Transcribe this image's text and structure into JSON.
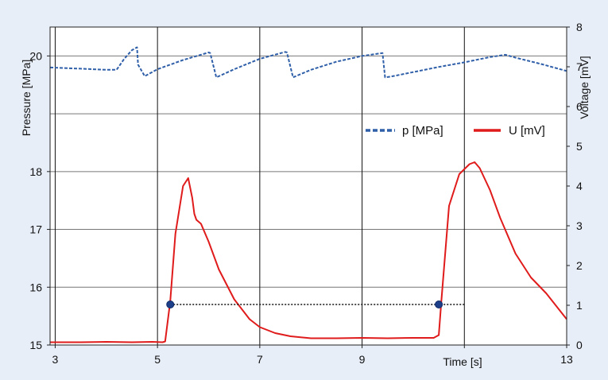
{
  "chart_data": {
    "type": "line",
    "title": "",
    "xlabel": "Time [s]",
    "ylabel_left": "Pressure [MPa]",
    "ylabel_right": "Voltage [mV]",
    "xlim": [
      2.9,
      13.0
    ],
    "ylim_left": [
      15.0,
      20.5
    ],
    "ylim_right": [
      0,
      8
    ],
    "x_ticks": [
      3,
      5,
      7,
      9,
      11,
      13
    ],
    "x_tick_labels": [
      "3",
      "5",
      "7",
      "9",
      "",
      "13"
    ],
    "y_left_ticks": [
      15,
      16,
      17,
      18,
      20
    ],
    "y_left_tick_labels": [
      "15",
      "16",
      "17",
      "18",
      "20"
    ],
    "y_right_ticks": [
      0,
      1,
      2,
      3,
      4,
      5,
      6,
      7,
      8
    ],
    "y_right_tick_labels": [
      "0",
      "1",
      "2",
      "3",
      "4",
      "5",
      "6",
      "7",
      "8"
    ],
    "grid": true,
    "legend_position": "upper-right",
    "colors": {
      "pressure": "#2f5fa8",
      "voltage": "#e01b1b",
      "marker": "#1e3f8a",
      "background": "#e8eef8",
      "plot_background": "#ffffff"
    },
    "series": [
      {
        "name": "p [MPa]",
        "axis": "left",
        "style": "dashed",
        "x": [
          2.9,
          3.5,
          4.0,
          4.2,
          4.35,
          4.5,
          4.6,
          4.62,
          4.75,
          5.0,
          5.5,
          6.0,
          6.03,
          6.15,
          6.5,
          7.0,
          7.5,
          7.53,
          7.65,
          8.0,
          8.5,
          9.0,
          9.4,
          9.45,
          9.55,
          10.0,
          10.5,
          11.0,
          11.5,
          11.8,
          12.0,
          12.5,
          13.0
        ],
        "y": [
          19.8,
          19.78,
          19.76,
          19.76,
          19.95,
          20.1,
          20.15,
          19.85,
          19.65,
          19.77,
          19.93,
          20.06,
          20.05,
          19.63,
          19.77,
          19.95,
          20.07,
          20.06,
          19.63,
          19.76,
          19.9,
          20.0,
          20.05,
          19.63,
          19.64,
          19.72,
          19.81,
          19.89,
          19.98,
          20.02,
          19.97,
          19.86,
          19.74
        ]
      },
      {
        "name": "U [mV]",
        "axis": "right",
        "style": "solid",
        "x": [
          2.9,
          3.5,
          4.0,
          4.5,
          4.9,
          5.1,
          5.15,
          5.25,
          5.35,
          5.5,
          5.6,
          5.68,
          5.72,
          5.76,
          5.85,
          6.0,
          6.2,
          6.5,
          6.8,
          7.0,
          7.3,
          7.6,
          8.0,
          8.5,
          9.0,
          9.5,
          10.0,
          10.4,
          10.5,
          10.55,
          10.7,
          10.9,
          11.1,
          11.2,
          11.3,
          11.5,
          11.7,
          12.0,
          12.3,
          12.6,
          13.0
        ],
        "y": [
          0.07,
          0.07,
          0.08,
          0.07,
          0.08,
          0.07,
          0.09,
          1.1,
          2.8,
          4.0,
          4.2,
          3.7,
          3.3,
          3.15,
          3.05,
          2.6,
          1.9,
          1.15,
          0.65,
          0.45,
          0.3,
          0.22,
          0.17,
          0.17,
          0.18,
          0.17,
          0.18,
          0.18,
          0.25,
          1.1,
          3.5,
          4.3,
          4.55,
          4.6,
          4.45,
          3.9,
          3.2,
          2.3,
          1.7,
          1.3,
          0.65
        ]
      }
    ],
    "markers": [
      {
        "x": 5.25,
        "y": 1.02
      },
      {
        "x": 10.5,
        "y": 1.02
      }
    ],
    "reference_line": {
      "x_from": 5.25,
      "x_to": 11.0,
      "y": 1.02,
      "axis": "right"
    }
  }
}
